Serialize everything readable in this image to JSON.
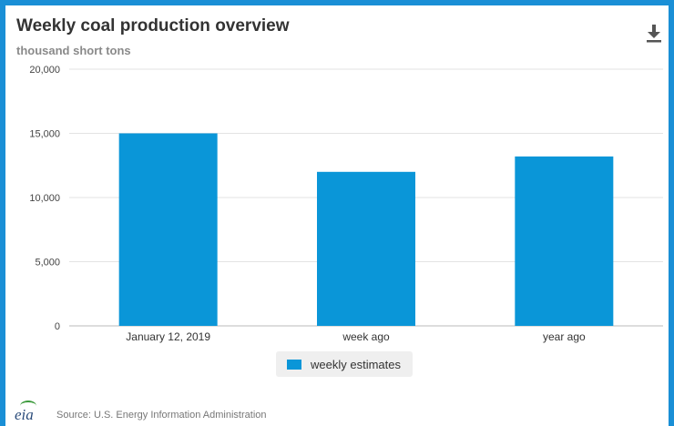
{
  "header": {
    "title": "Weekly coal production overview",
    "subtitle": "thousand short tons"
  },
  "icons": {
    "download": "download-icon",
    "logo": "eia-logo"
  },
  "colors": {
    "bar": "#0a96d8",
    "frame": "#1a8fd6"
  },
  "logo_text": "eia",
  "footer": {
    "source": "Source: U.S. Energy Information Administration"
  },
  "chart_data": {
    "type": "bar",
    "categories": [
      "January 12, 2019",
      "week ago",
      "year ago"
    ],
    "series": [
      {
        "name": "weekly estimates",
        "values": [
          15000,
          12000,
          13200
        ]
      }
    ],
    "ylim": [
      0,
      20000
    ],
    "yticks": [
      0,
      5000,
      10000,
      15000,
      20000
    ],
    "ytick_labels": [
      "0",
      "5,000",
      "10,000",
      "15,000",
      "20,000"
    ],
    "grid": true,
    "legend": "bottom-center"
  }
}
